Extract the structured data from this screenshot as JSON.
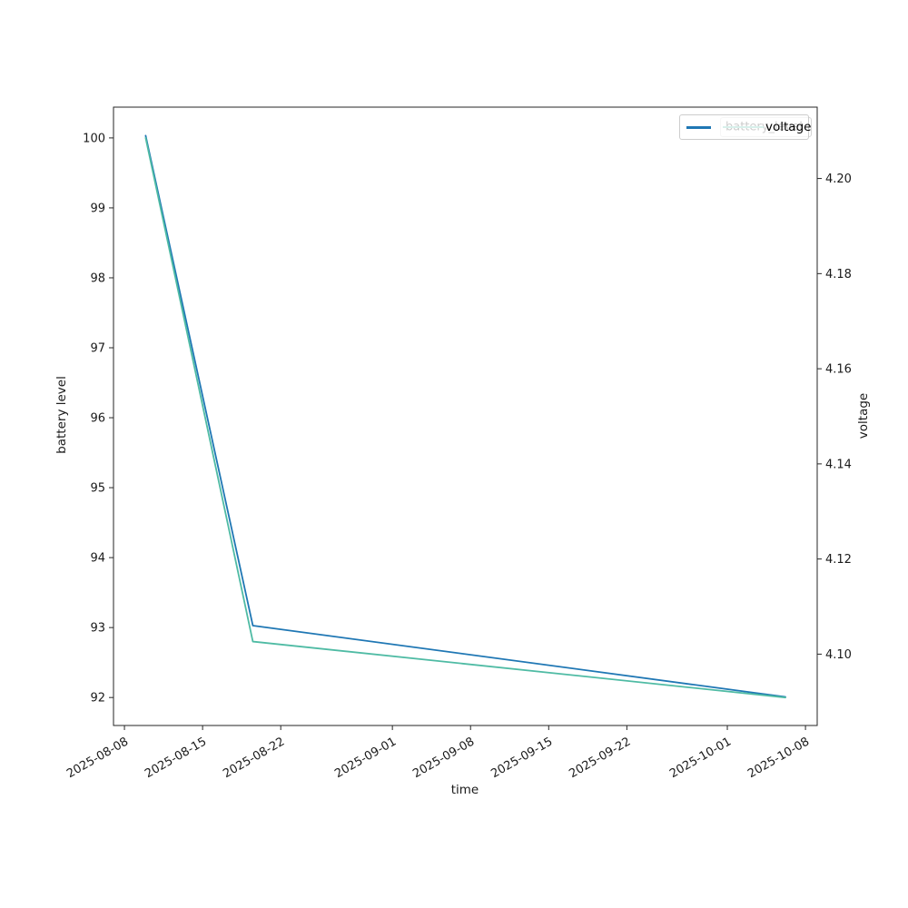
{
  "chart_data": {
    "type": "line",
    "title": "",
    "xlabel": "time",
    "ylabel_left": "battery level",
    "ylabel_right": "voltage",
    "grid": false,
    "legend_position": "upper right",
    "x_epoch": "2025-08-08",
    "x_dates": [
      "2025-08-10",
      "2025-08-19",
      "2025-10-06"
    ],
    "x_days": [
      1.9,
      11.5,
      59.2
    ],
    "series": [
      {
        "name": "battery_level",
        "axis": "left",
        "color": "#4fbba4",
        "values": [
          100,
          92.8,
          92.0
        ]
      },
      {
        "name": "voltage",
        "axis": "right",
        "color": "#1f77b4",
        "values": [
          4.209,
          4.106,
          4.091
        ]
      }
    ],
    "x_ticks": [
      "2025-08-08",
      "2025-08-15",
      "2025-08-22",
      "2025-09-01",
      "2025-09-08",
      "2025-09-15",
      "2025-09-22",
      "2025-10-01",
      "2025-10-08"
    ],
    "y_left_ticks": [
      "100",
      "99",
      "98",
      "97",
      "96",
      "95",
      "94",
      "93",
      "92"
    ],
    "y_right_ticks": [
      "4.20",
      "4.18",
      "4.16",
      "4.14",
      "4.12",
      "4.10"
    ],
    "xlim_days": [
      -0.98,
      62.05
    ],
    "ylim_left": [
      91.6,
      100.44
    ],
    "ylim_right": [
      4.085,
      4.215
    ]
  },
  "legends": {
    "back": {
      "label": "battery_level",
      "color": "#4fbba4"
    },
    "front": {
      "label": "voltage",
      "color": "#1f77b4"
    }
  }
}
